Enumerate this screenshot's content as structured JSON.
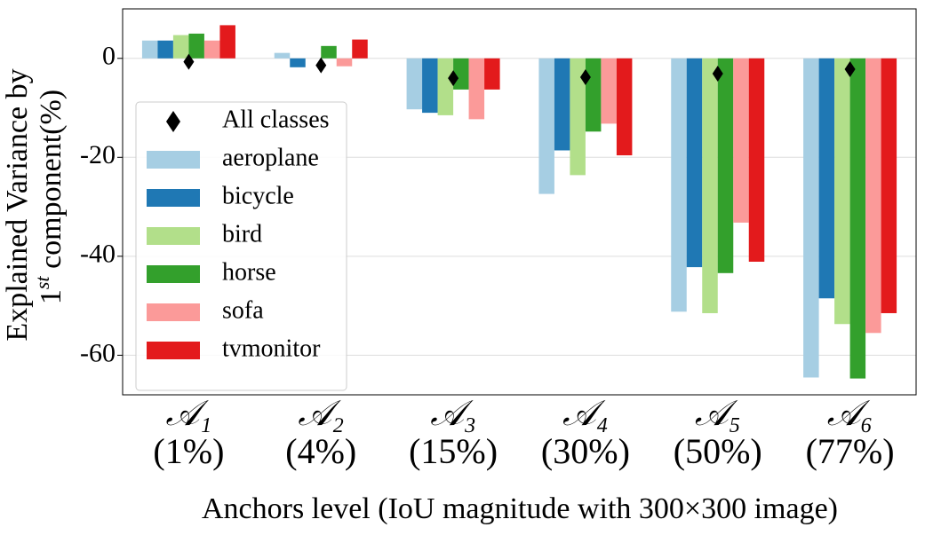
{
  "chart_data": {
    "type": "bar",
    "ylabel": {
      "line1": "Explained Variance by",
      "line2": [
        "1",
        "st",
        " component(%)"
      ]
    },
    "xlabel": "Anchors level (IoU magnitude with 300×300 image)",
    "categories": [
      "𝒜₁",
      "𝒜₂",
      "𝒜₃",
      "𝒜₄",
      "𝒜₅",
      "𝒜₆"
    ],
    "category_notes": [
      "(1%)",
      "(4%)",
      "(15%)",
      "(30%)",
      "(50%)",
      "(77%)"
    ],
    "series": [
      {
        "name": "aeroplane",
        "color": "#a6cee3",
        "values": [
          3.6,
          1.1,
          -10.3,
          -27.4,
          -51.2,
          -64.5
        ]
      },
      {
        "name": "bicycle",
        "color": "#1f78b4",
        "values": [
          3.6,
          -1.8,
          -11,
          -18.6,
          -42.2,
          -48.5
        ]
      },
      {
        "name": "bird",
        "color": "#b2df8a",
        "values": [
          4.7,
          0,
          -11.5,
          -23.6,
          -51.5,
          -53.7
        ]
      },
      {
        "name": "horse",
        "color": "#33a02c",
        "values": [
          5,
          2.5,
          -6.3,
          -14.8,
          -43.4,
          -64.7
        ]
      },
      {
        "name": "sofa",
        "color": "#fb9a99",
        "values": [
          3.6,
          -1.6,
          -12.3,
          -13.2,
          -33.2,
          -55.5
        ]
      },
      {
        "name": "tvmonitor",
        "color": "#e31a1c",
        "values": [
          6.7,
          3.8,
          -6.3,
          -19.6,
          -41.1,
          -51.5
        ]
      }
    ],
    "markers": {
      "name": "All classes",
      "color": "#000000",
      "values": [
        -0.7,
        -1.4,
        -4,
        -3.8,
        -3.1,
        -2.2
      ]
    },
    "ylim": [
      -68,
      10
    ],
    "yticks": [
      0,
      -20,
      -40,
      -60
    ],
    "grid": true,
    "legend": "center left"
  }
}
